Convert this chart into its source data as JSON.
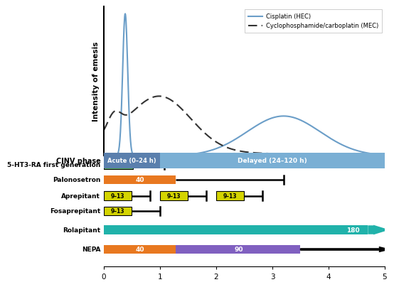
{
  "line_color_hec": "#6b9ec8",
  "line_color_mec": "#333333",
  "legend_labels": [
    "Cisplatin (HEC)",
    "Cyclophosphamide/carboplatin (MEC)"
  ],
  "ylabel": "Intensity of emesis",
  "cinv_acute_label": "Acute (0–24 h)",
  "cinv_delayed_label": "Delayed (24–120 h)",
  "cinv_bar_dark": "#5a7fad",
  "cinv_bar_light": "#7aafd4",
  "green_color": "#5cb85c",
  "yellow_color": "#d4d400",
  "orange_color": "#e87820",
  "teal_color": "#20b2aa",
  "purple_color": "#8060c0",
  "background_color": "#ffffff",
  "drug_labels": [
    "5-HT3-RA first generation",
    "Palonosetron",
    "Aprepitant",
    "Fosaprepitant",
    "Rolapitant",
    "NEPA"
  ]
}
